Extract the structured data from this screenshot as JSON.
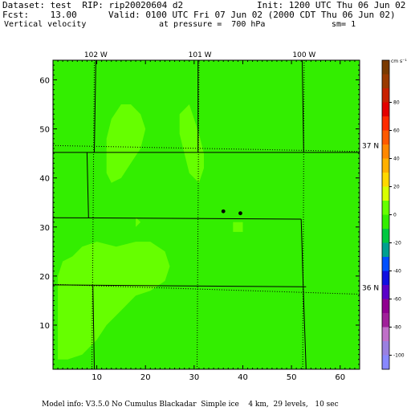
{
  "header": {
    "dataset": "Dataset: test  RIP: rip20020604 d2",
    "init": "Init: 1200 UTC Thu 06 Jun 02",
    "fcst": "Fcst:    13.00",
    "valid": "Valid: 0100 UTC Fri 07 Jun 02 (2000 CDT Thu 06 Jun 02)",
    "field": "Vertical velocity",
    "pressure": "at pressure =  700 hPa",
    "sm": "sm= 1"
  },
  "footer": "Model info: V3.5.0 No Cumulus Blackadar  Simple ice    4 km,  29 levels,   10 sec",
  "colors": {
    "background_field": "#33ee00",
    "shaded_field": "#66ff00",
    "frame": "#000000"
  },
  "chart_data": {
    "type": "heatmap",
    "title": "Vertical velocity",
    "xlim": [
      1,
      64
    ],
    "ylim": [
      1,
      64
    ],
    "x_ticks": [
      10,
      20,
      30,
      40,
      50,
      60
    ],
    "y_ticks": [
      10,
      20,
      30,
      40,
      50,
      60
    ],
    "top_labels": [
      "102 W",
      "101 W",
      "100 W"
    ],
    "right_labels": [
      "37 N",
      "36 N"
    ],
    "colorbar": {
      "unit": "cm s⁻¹",
      "ticks": [
        "80",
        "60",
        "40",
        "20",
        "0",
        "-20",
        "-40",
        "-60",
        "-80",
        "-100"
      ],
      "colors": [
        "#7a3a00",
        "#9a3a00",
        "#c82000",
        "#e40000",
        "#ff2a00",
        "#ff5a00",
        "#ff8800",
        "#ffb000",
        "#ffd800",
        "#d8ff00",
        "#66ff00",
        "#33ee00",
        "#00c840",
        "#00a090",
        "#0050ff",
        "#1010e0",
        "#5a00c8",
        "#900090",
        "#a0209a",
        "#c070c8",
        "#9a80e0",
        "#8888ff"
      ]
    },
    "shaded_regions_grid": [
      [
        [
          13,
          52
        ],
        [
          15,
          55
        ],
        [
          17,
          55
        ],
        [
          19,
          53
        ],
        [
          20,
          50
        ],
        [
          19,
          46
        ],
        [
          17,
          43
        ],
        [
          15,
          40
        ],
        [
          13,
          39
        ],
        [
          12,
          41
        ],
        [
          12,
          44
        ],
        [
          12,
          48
        ]
      ],
      [
        [
          27,
          53
        ],
        [
          29,
          55
        ],
        [
          30,
          52
        ],
        [
          31,
          49
        ],
        [
          32,
          45
        ],
        [
          32,
          42
        ],
        [
          31,
          39
        ],
        [
          29,
          41
        ],
        [
          28,
          45
        ],
        [
          27,
          49
        ]
      ],
      [
        [
          2,
          9
        ],
        [
          2,
          20
        ],
        [
          3,
          23
        ],
        [
          5,
          24
        ],
        [
          7,
          26
        ],
        [
          10,
          27
        ],
        [
          14,
          26
        ],
        [
          18,
          27
        ],
        [
          21,
          27
        ],
        [
          24,
          25
        ],
        [
          25,
          22
        ],
        [
          24,
          19
        ],
        [
          21,
          17
        ],
        [
          18,
          16
        ],
        [
          15,
          13
        ],
        [
          12,
          10
        ],
        [
          10,
          7
        ],
        [
          7,
          4
        ],
        [
          4,
          3
        ],
        [
          2,
          3
        ]
      ],
      [
        [
          38,
          31
        ],
        [
          40,
          31
        ],
        [
          40,
          29
        ],
        [
          38,
          29
        ]
      ],
      [
        [
          18,
          32
        ],
        [
          19,
          31
        ],
        [
          18,
          30
        ]
      ]
    ],
    "points": [
      [
        36,
        33.2
      ],
      [
        39.5,
        32.8
      ]
    ]
  }
}
